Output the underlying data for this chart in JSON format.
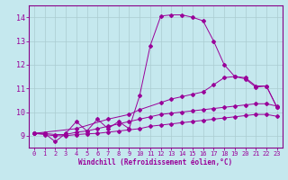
{
  "xlabel": "Windchill (Refroidissement éolien,°C)",
  "bg_color": "#c5e8ee",
  "line_color": "#990099",
  "grid_color": "#aaccd0",
  "spine_color": "#880088",
  "xlim": [
    -0.5,
    23.5
  ],
  "ylim": [
    8.5,
    14.5
  ],
  "xticks": [
    0,
    1,
    2,
    3,
    4,
    5,
    6,
    7,
    8,
    9,
    10,
    11,
    12,
    13,
    14,
    15,
    16,
    17,
    18,
    19,
    20,
    21,
    22,
    23
  ],
  "yticks": [
    9,
    10,
    11,
    12,
    13,
    14
  ],
  "curve1_x": [
    0,
    1,
    2,
    3,
    4,
    5,
    6,
    7,
    8,
    9,
    10,
    11,
    12,
    13,
    14,
    15,
    16,
    17,
    18,
    19,
    20,
    21,
    22,
    23
  ],
  "curve1_y": [
    9.1,
    9.1,
    8.75,
    9.1,
    9.6,
    9.2,
    9.7,
    9.3,
    9.6,
    9.3,
    10.7,
    12.8,
    14.05,
    14.1,
    14.1,
    14.0,
    13.85,
    13.0,
    12.0,
    11.5,
    11.4,
    11.05,
    11.1,
    10.2
  ],
  "curve2_x": [
    0,
    4,
    7,
    9,
    10,
    12,
    13,
    14,
    15,
    16,
    17,
    18,
    19,
    20,
    21,
    22,
    23
  ],
  "curve2_y": [
    9.1,
    9.3,
    9.7,
    9.9,
    10.1,
    10.4,
    10.55,
    10.65,
    10.75,
    10.85,
    11.15,
    11.45,
    11.5,
    11.45,
    11.1,
    11.1,
    10.2
  ],
  "curve3_x": [
    0,
    1,
    2,
    3,
    4,
    5,
    6,
    7,
    8,
    9,
    10,
    11,
    12,
    13,
    14,
    15,
    16,
    17,
    18,
    19,
    20,
    21,
    22,
    23
  ],
  "curve3_y": [
    9.1,
    9.1,
    9.05,
    9.05,
    9.15,
    9.2,
    9.3,
    9.4,
    9.5,
    9.6,
    9.7,
    9.8,
    9.9,
    9.95,
    10.0,
    10.05,
    10.1,
    10.15,
    10.2,
    10.25,
    10.3,
    10.35,
    10.35,
    10.25
  ],
  "curve4_x": [
    0,
    1,
    2,
    3,
    4,
    5,
    6,
    7,
    8,
    9,
    10,
    11,
    12,
    13,
    14,
    15,
    16,
    17,
    18,
    19,
    20,
    21,
    22,
    23
  ],
  "curve4_y": [
    9.1,
    9.05,
    9.0,
    9.0,
    9.05,
    9.08,
    9.1,
    9.15,
    9.2,
    9.25,
    9.3,
    9.4,
    9.45,
    9.5,
    9.55,
    9.6,
    9.65,
    9.7,
    9.75,
    9.8,
    9.85,
    9.9,
    9.9,
    9.82
  ]
}
